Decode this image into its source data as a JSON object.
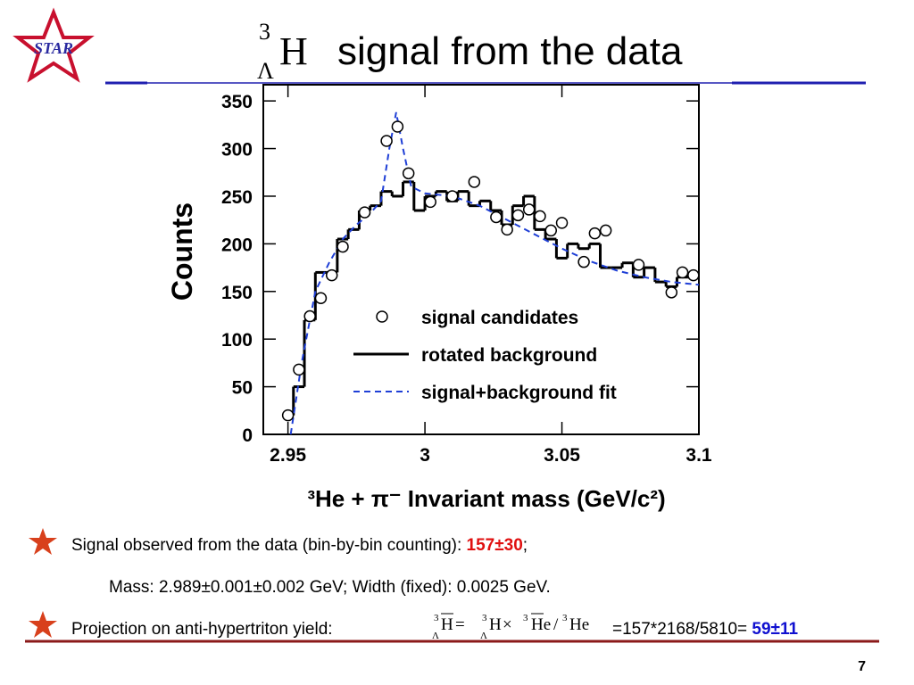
{
  "logo": "STAR",
  "title_symbol": {
    "sup": "3",
    "sub": "Λ",
    "base": "H"
  },
  "title": "signal from the data",
  "chart_data": {
    "type": "scatter",
    "x_label": "³He + π⁻ Invariant mass (GeV/c²)",
    "y_label": "Counts",
    "xlim": [
      2.941,
      3.1
    ],
    "ylim": [
      0,
      367
    ],
    "xticks": [
      2.95,
      3,
      3.05,
      3.1
    ],
    "yticks": [
      0,
      50,
      100,
      150,
      200,
      250,
      300,
      350
    ],
    "legend": "right",
    "series": [
      {
        "name": "signal candidates",
        "type": "scatter",
        "color": "#000000",
        "x": [
          2.95,
          2.954,
          2.958,
          2.962,
          2.966,
          2.97,
          2.978,
          2.986,
          2.99,
          2.994,
          3.002,
          3.01,
          3.018,
          3.026,
          3.03,
          3.034,
          3.038,
          3.042,
          3.046,
          3.05,
          3.058,
          3.062,
          3.066,
          3.078,
          3.09,
          3.094,
          3.098
        ],
        "values": [
          20,
          68,
          124,
          143,
          167,
          197,
          233,
          308,
          323,
          274,
          244,
          250,
          265,
          228,
          215,
          230,
          236,
          229,
          214,
          222,
          181,
          211,
          214,
          178,
          149,
          170,
          167
        ]
      },
      {
        "name": "rotated background",
        "type": "step",
        "color": "#000000",
        "x": [
          2.95,
          2.954,
          2.958,
          2.962,
          2.966,
          2.97,
          2.974,
          2.978,
          2.982,
          2.986,
          2.99,
          2.994,
          2.998,
          3.002,
          3.006,
          3.01,
          3.014,
          3.018,
          3.022,
          3.026,
          3.03,
          3.034,
          3.038,
          3.042,
          3.046,
          3.05,
          3.054,
          3.058,
          3.062,
          3.066,
          3.07,
          3.074,
          3.078,
          3.082,
          3.086,
          3.09,
          3.094,
          3.098
        ],
        "values": [
          20,
          50,
          120,
          170,
          170,
          205,
          215,
          235,
          240,
          255,
          250,
          265,
          235,
          250,
          255,
          245,
          255,
          240,
          245,
          235,
          220,
          240,
          250,
          215,
          205,
          185,
          200,
          195,
          200,
          175,
          175,
          180,
          165,
          175,
          160,
          155,
          165,
          165
        ]
      },
      {
        "name": "signal+background fit",
        "type": "line",
        "color": "#1f3fd6",
        "x": [
          2.951,
          2.955,
          2.96,
          2.965,
          2.97,
          2.975,
          2.98,
          2.984,
          2.987,
          2.9895,
          2.992,
          2.995,
          3.0,
          3.01,
          3.02,
          3.03,
          3.04,
          3.05,
          3.06,
          3.07,
          3.08,
          3.09,
          3.1
        ],
        "values": [
          0,
          75,
          150,
          180,
          205,
          220,
          232,
          245,
          300,
          338,
          300,
          260,
          253,
          250,
          240,
          225,
          210,
          195,
          182,
          172,
          165,
          160,
          157
        ]
      }
    ]
  },
  "bullets": {
    "line1": {
      "text": "Signal observed from the data (bin-by-bin counting): ",
      "result": "157±30",
      "end": ";"
    },
    "line2": "Mass: 2.989±0.001±0.002 GeV; Width (fixed): 0.0025 GeV.",
    "line3": {
      "text": "Projection on anti-hypertriton yield: ",
      "formula": {
        "sup": "3",
        "sub": "Λ",
        "parts": [
          "H",
          "=",
          "H",
          "×",
          "He",
          "/",
          "He"
        ]
      },
      "calc": "=157*2168/5810= ",
      "result": "59±11"
    }
  },
  "page_number": "7"
}
